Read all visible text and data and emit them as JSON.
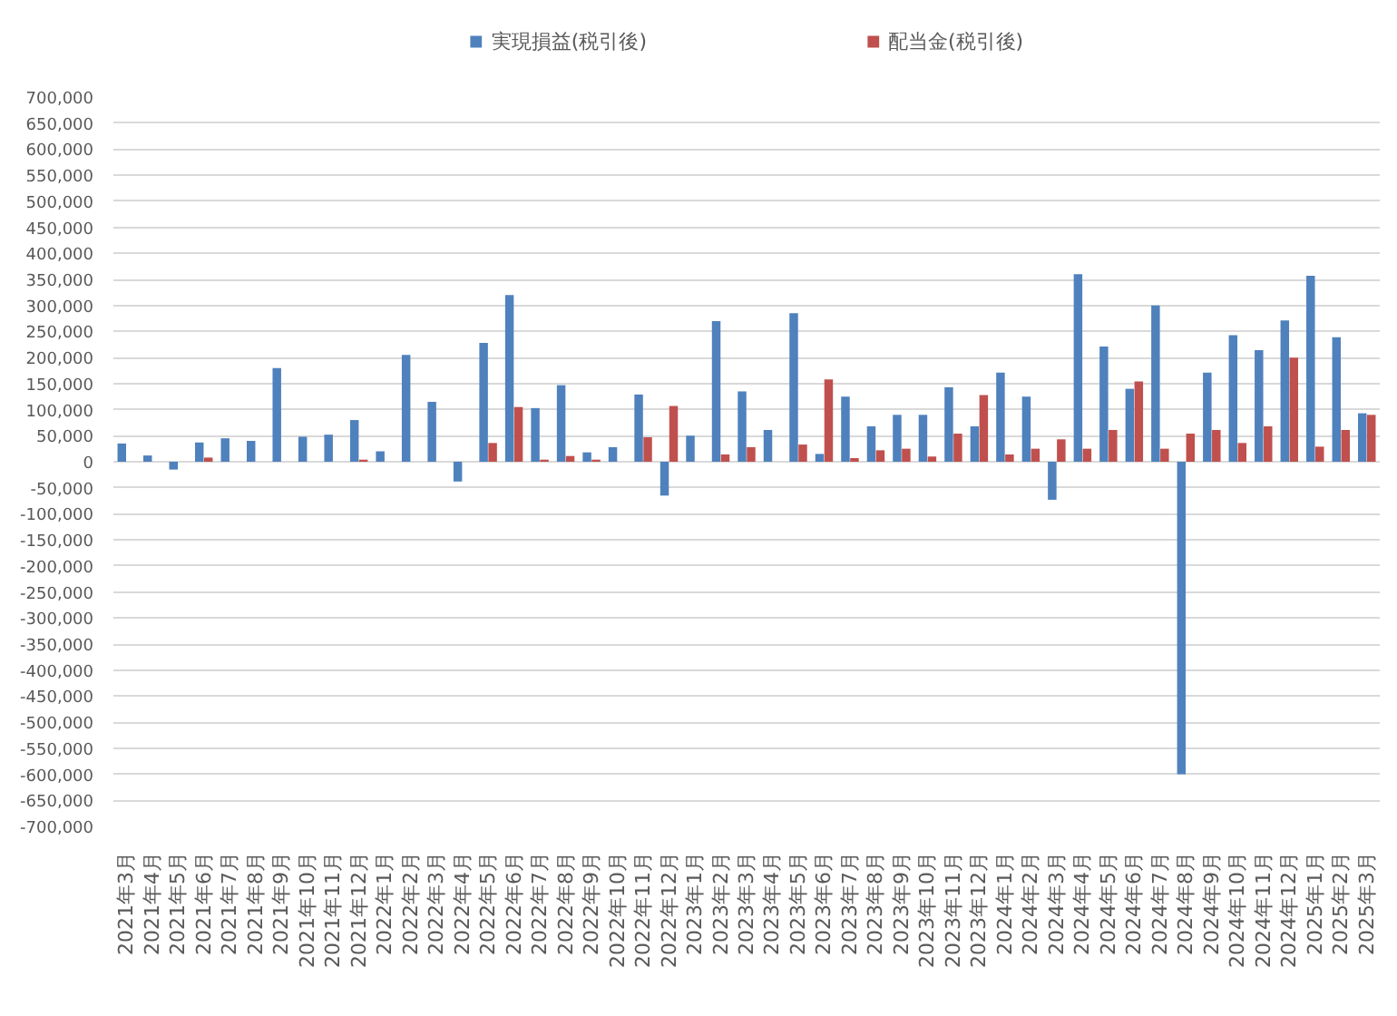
{
  "chart_data": {
    "type": "bar",
    "categories": [
      "2021年3月",
      "2021年4月",
      "2021年5月",
      "2021年6月",
      "2021年7月",
      "2021年8月",
      "2021年9月",
      "2021年10月",
      "2021年11月",
      "2021年12月",
      "2022年1月",
      "2022年2月",
      "2022年3月",
      "2022年4月",
      "2022年5月",
      "2022年6月",
      "2022年7月",
      "2022年8月",
      "2022年9月",
      "2022年10月",
      "2022年11月",
      "2022年12月",
      "2023年1月",
      "2023年2月",
      "2023年3月",
      "2023年4月",
      "2023年5月",
      "2023年6月",
      "2023年7月",
      "2023年8月",
      "2023年9月",
      "2023年10月",
      "2023年11月",
      "2023年12月",
      "2024年1月",
      "2024年2月",
      "2024年3月",
      "2024年4月",
      "2024年5月",
      "2024年6月",
      "2024年7月",
      "2024年8月",
      "2024年9月",
      "2024年10月",
      "2024年11月",
      "2024年12月",
      "2025年1月",
      "2025年2月",
      "2025年3月"
    ],
    "series": [
      {
        "name": "実現損益(税引後)",
        "color": "#4f81bd",
        "values": [
          35000,
          12000,
          -15000,
          37000,
          45000,
          40000,
          180000,
          48000,
          52000,
          80000,
          20000,
          205000,
          115000,
          -38000,
          228000,
          320000,
          103000,
          147000,
          18000,
          28000,
          129000,
          -65000,
          50000,
          270000,
          135000,
          61000,
          285000,
          15000,
          125000,
          68000,
          90000,
          90000,
          143000,
          68000,
          171000,
          125000,
          -73000,
          360000,
          221000,
          140000,
          300000,
          -600000,
          171000,
          243000,
          214000,
          271000,
          357000,
          239000,
          93000
        ]
      },
      {
        "name": "配当金(税引後)",
        "color": "#c0504d",
        "values": [
          null,
          null,
          null,
          8000,
          null,
          null,
          null,
          null,
          null,
          4000,
          null,
          null,
          null,
          null,
          36000,
          105000,
          4000,
          11000,
          4000,
          null,
          47000,
          107000,
          null,
          14000,
          28000,
          null,
          33000,
          158000,
          7000,
          22000,
          25000,
          10000,
          54000,
          128000,
          14000,
          25000,
          43000,
          25000,
          61000,
          154000,
          25000,
          54000,
          61000,
          36000,
          68000,
          200000,
          29000,
          61000,
          90000
        ]
      }
    ],
    "ylim": [
      -700000,
      700000
    ],
    "yticks": [
      {
        "value": -700000,
        "label": "-700,000"
      },
      {
        "value": -650000,
        "label": "-650,000"
      },
      {
        "value": -600000,
        "label": "-600,000"
      },
      {
        "value": -550000,
        "label": "-550,000"
      },
      {
        "value": -500000,
        "label": "-500,000"
      },
      {
        "value": -450000,
        "label": "-450,000"
      },
      {
        "value": -400000,
        "label": "-400,000"
      },
      {
        "value": -350000,
        "label": "-350,000"
      },
      {
        "value": -300000,
        "label": "-300,000"
      },
      {
        "value": -250000,
        "label": "-250,000"
      },
      {
        "value": -200000,
        "label": "-200,000"
      },
      {
        "value": -150000,
        "label": "-150,000"
      },
      {
        "value": -100000,
        "label": "-100,000"
      },
      {
        "value": -50000,
        "label": "-50,000"
      },
      0,
      {
        "value": 50000,
        "label": "50,000"
      },
      {
        "value": 100000,
        "label": "100,000"
      },
      {
        "value": 150000,
        "label": "150,000"
      },
      {
        "value": 200000,
        "label": "200,000"
      },
      {
        "value": 250000,
        "label": "250,000"
      },
      {
        "value": 300000,
        "label": "300,000"
      },
      {
        "value": 350000,
        "label": "350,000"
      },
      {
        "value": 400000,
        "label": "400,000"
      },
      {
        "value": 450000,
        "label": "450,000"
      },
      {
        "value": 500000,
        "label": "500,000"
      },
      {
        "value": 550000,
        "label": "550,000"
      },
      {
        "value": 600000,
        "label": "600,000"
      },
      {
        "value": 650000,
        "label": "650,000"
      },
      {
        "value": 700000,
        "label": "700,000"
      }
    ],
    "grid": "y",
    "legend": "top"
  }
}
